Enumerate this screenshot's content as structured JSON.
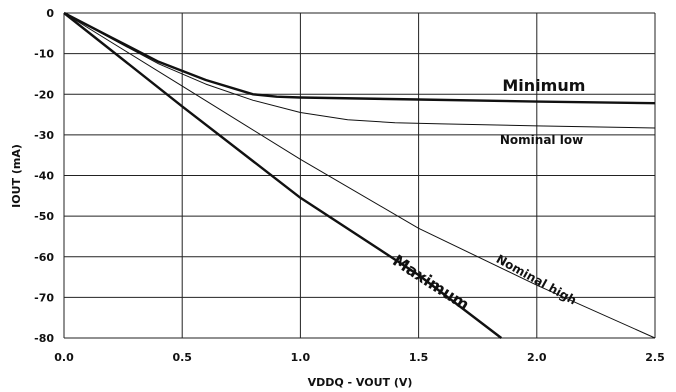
{
  "chart_data": {
    "type": "line",
    "xlabel": "VDDQ - VOUT (V)",
    "ylabel": "IOUT (mA)",
    "xlim": [
      0,
      2.5
    ],
    "ylim": [
      -80,
      0
    ],
    "x_ticks": [
      "0.0",
      "0.5",
      "1.0",
      "1.5",
      "2.0",
      "2.5"
    ],
    "y_ticks": [
      "0",
      "-10",
      "-20",
      "-30",
      "-40",
      "-50",
      "-60",
      "-70",
      "-80"
    ],
    "grid": true,
    "series": [
      {
        "name": "Minimum",
        "weight": "heavy",
        "x": [
          0,
          0.2,
          0.4,
          0.6,
          0.8,
          0.9,
          1.0,
          1.5,
          2.0,
          2.5
        ],
        "y": [
          0,
          -6,
          -12,
          -16.5,
          -20,
          -20.6,
          -20.8,
          -21.3,
          -21.8,
          -22.2
        ]
      },
      {
        "name": "Nominal low",
        "weight": "light",
        "x": [
          0,
          0.2,
          0.4,
          0.6,
          0.8,
          1.0,
          1.2,
          1.4,
          1.6,
          2.0,
          2.5
        ],
        "y": [
          0,
          -6.3,
          -12.5,
          -17.5,
          -21.5,
          -24.5,
          -26.3,
          -27.0,
          -27.3,
          -27.8,
          -28.3
        ]
      },
      {
        "name": "Nominal high",
        "weight": "light",
        "x": [
          0,
          0.5,
          1.0,
          1.5,
          2.0,
          2.5
        ],
        "y": [
          0,
          -18,
          -36,
          -53,
          -67,
          -80
        ]
      },
      {
        "name": "Maximum",
        "weight": "heavy",
        "x": [
          0,
          0.5,
          1.0,
          1.5,
          1.85
        ],
        "y": [
          0,
          -23,
          -45.5,
          -64.5,
          -80
        ]
      }
    ]
  }
}
